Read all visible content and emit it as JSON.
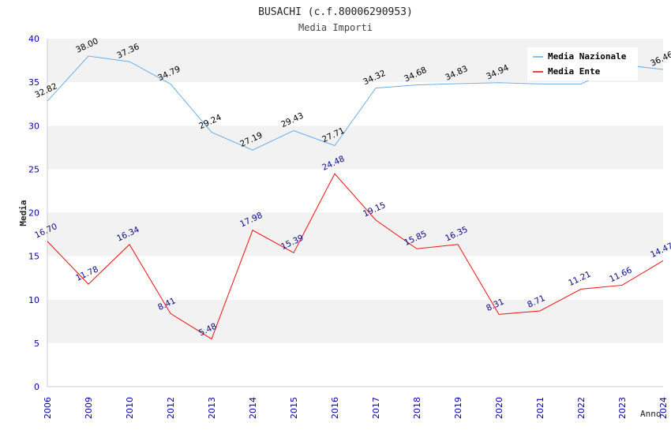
{
  "chart_data": {
    "type": "line",
    "title": "BUSACHI (c.f.80006290953)",
    "subtitle": "Media Importi",
    "xlabel": "Anno",
    "ylabel": "Media",
    "ylim": [
      0,
      40
    ],
    "yticks": [
      0,
      5,
      10,
      15,
      20,
      25,
      30,
      35,
      40
    ],
    "grid": "horizontal bands",
    "legend_position": "top-right",
    "categories": [
      "2006",
      "2009",
      "2010",
      "2012",
      "2013",
      "2014",
      "2015",
      "2016",
      "2017",
      "2018",
      "2019",
      "2020",
      "2021",
      "2022",
      "2023",
      "2024"
    ],
    "series": [
      {
        "name": "Media Nazionale",
        "color": "#6aaee8",
        "label_color": "#000000",
        "values": [
          32.82,
          38.0,
          37.36,
          34.79,
          29.24,
          27.19,
          29.43,
          27.71,
          34.32,
          34.68,
          34.83,
          34.94,
          34.8,
          34.8,
          37.0,
          36.46
        ],
        "labels": [
          "32.82",
          "38.00",
          "37.36",
          "34.79",
          "29.24",
          "27.19",
          "29.43",
          "27.71",
          "34.32",
          "34.68",
          "34.83",
          "34.94",
          "",
          "",
          "",
          "36.46"
        ]
      },
      {
        "name": "Media Ente",
        "color": "#ee1111",
        "label_color": "#0a0a8a",
        "values": [
          16.7,
          11.78,
          16.34,
          8.41,
          5.48,
          17.98,
          15.39,
          24.48,
          19.15,
          15.85,
          16.35,
          8.31,
          8.71,
          11.21,
          11.66,
          14.47
        ],
        "labels": [
          "16.70",
          "11.78",
          "16.34",
          "8.41",
          "5.48",
          "17.98",
          "15.39",
          "24.48",
          "19.15",
          "15.85",
          "16.35",
          "8.31",
          "8.71",
          "11.21",
          "11.66",
          "14.47"
        ]
      }
    ]
  }
}
